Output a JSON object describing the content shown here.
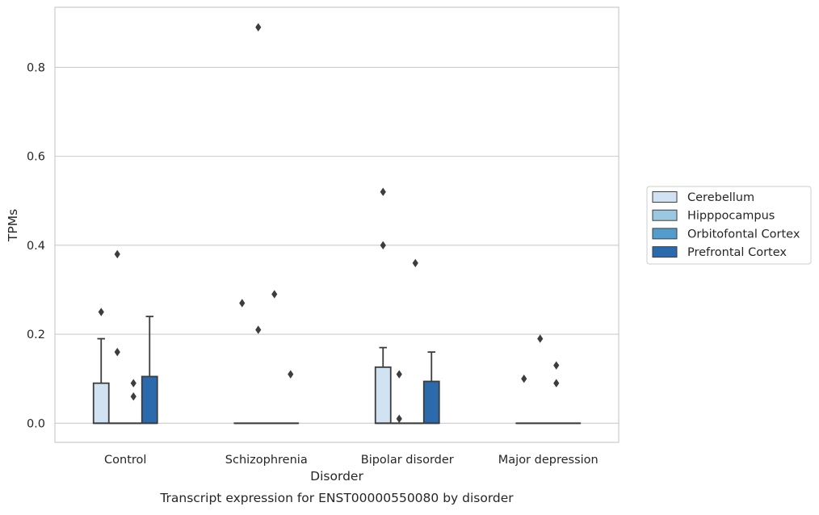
{
  "chart_data": {
    "type": "box",
    "title": "",
    "caption": "Transcript expression for ENST00000550080 by disorder",
    "xlabel": "Disorder",
    "ylabel": "TPMs",
    "ylim": [
      -0.043,
      0.935
    ],
    "yticks": [
      0.0,
      0.2,
      0.4,
      0.6,
      0.8
    ],
    "ytick_labels": [
      "0.0",
      "0.2",
      "0.4",
      "0.6",
      "0.8"
    ],
    "grid": "horizontal",
    "legend_position": "right",
    "categories": [
      "Control",
      "Schizophrenia",
      "Bipolar disorder",
      "Major depression"
    ],
    "series": [
      {
        "name": "Cerebellum",
        "color": "#d1e2f2",
        "boxes": [
          {
            "q1": 0.0,
            "median": 0.0,
            "q3": 0.09,
            "whisker_low": 0.0,
            "whisker_high": 0.19,
            "outliers": [
              0.25
            ]
          },
          {
            "q1": 0.0,
            "median": 0.0,
            "q3": 0.0,
            "whisker_low": 0.0,
            "whisker_high": 0.0,
            "outliers": [
              0.27
            ]
          },
          {
            "q1": 0.0,
            "median": 0.0,
            "q3": 0.126,
            "whisker_low": 0.0,
            "whisker_high": 0.17,
            "outliers": [
              0.4,
              0.52
            ]
          },
          {
            "q1": 0.0,
            "median": 0.0,
            "q3": 0.0,
            "whisker_low": 0.0,
            "whisker_high": 0.0,
            "outliers": [
              0.1
            ]
          }
        ]
      },
      {
        "name": "Hipppocampus",
        "color": "#9ac8e0",
        "boxes": [
          {
            "q1": 0.0,
            "median": 0.0,
            "q3": 0.0,
            "whisker_low": 0.0,
            "whisker_high": 0.0,
            "outliers": [
              0.16,
              0.38
            ]
          },
          {
            "q1": 0.0,
            "median": 0.0,
            "q3": 0.0,
            "whisker_low": 0.0,
            "whisker_high": 0.0,
            "outliers": [
              0.21,
              0.89
            ]
          },
          {
            "q1": 0.0,
            "median": 0.0,
            "q3": 0.0,
            "whisker_low": 0.0,
            "whisker_high": 0.0,
            "outliers": [
              0.01,
              0.11
            ]
          },
          {
            "q1": 0.0,
            "median": 0.0,
            "q3": 0.0,
            "whisker_low": 0.0,
            "whisker_high": 0.0,
            "outliers": [
              0.19
            ]
          }
        ]
      },
      {
        "name": "Orbitofontal Cortex",
        "color": "#529dcb",
        "boxes": [
          {
            "q1": 0.0,
            "median": 0.0,
            "q3": 0.0,
            "whisker_low": 0.0,
            "whisker_high": 0.0,
            "outliers": [
              0.06,
              0.09
            ]
          },
          {
            "q1": 0.0,
            "median": 0.0,
            "q3": 0.0,
            "whisker_low": 0.0,
            "whisker_high": 0.0,
            "outliers": [
              0.29
            ]
          },
          {
            "q1": 0.0,
            "median": 0.0,
            "q3": 0.0,
            "whisker_low": 0.0,
            "whisker_high": 0.0,
            "outliers": [
              0.36
            ]
          },
          {
            "q1": 0.0,
            "median": 0.0,
            "q3": 0.0,
            "whisker_low": 0.0,
            "whisker_high": 0.0,
            "outliers": [
              0.09,
              0.13
            ]
          }
        ]
      },
      {
        "name": "Prefrontal Cortex",
        "color": "#2a6aad",
        "boxes": [
          {
            "q1": 0.0,
            "median": 0.0,
            "q3": 0.105,
            "whisker_low": 0.0,
            "whisker_high": 0.24,
            "outliers": []
          },
          {
            "q1": 0.0,
            "median": 0.0,
            "q3": 0.0,
            "whisker_low": 0.0,
            "whisker_high": 0.0,
            "outliers": [
              0.11
            ]
          },
          {
            "q1": 0.0,
            "median": 0.0,
            "q3": 0.094,
            "whisker_low": 0.0,
            "whisker_high": 0.16,
            "outliers": []
          },
          {
            "q1": 0.0,
            "median": 0.0,
            "q3": 0.0,
            "whisker_low": 0.0,
            "whisker_high": 0.0,
            "outliers": []
          }
        ]
      }
    ]
  },
  "colors": {
    "grid": "#cccccc",
    "axes_edge": "#cccccc",
    "box_edge": "#3d3d3d",
    "outlier": "#3d3d3d"
  }
}
